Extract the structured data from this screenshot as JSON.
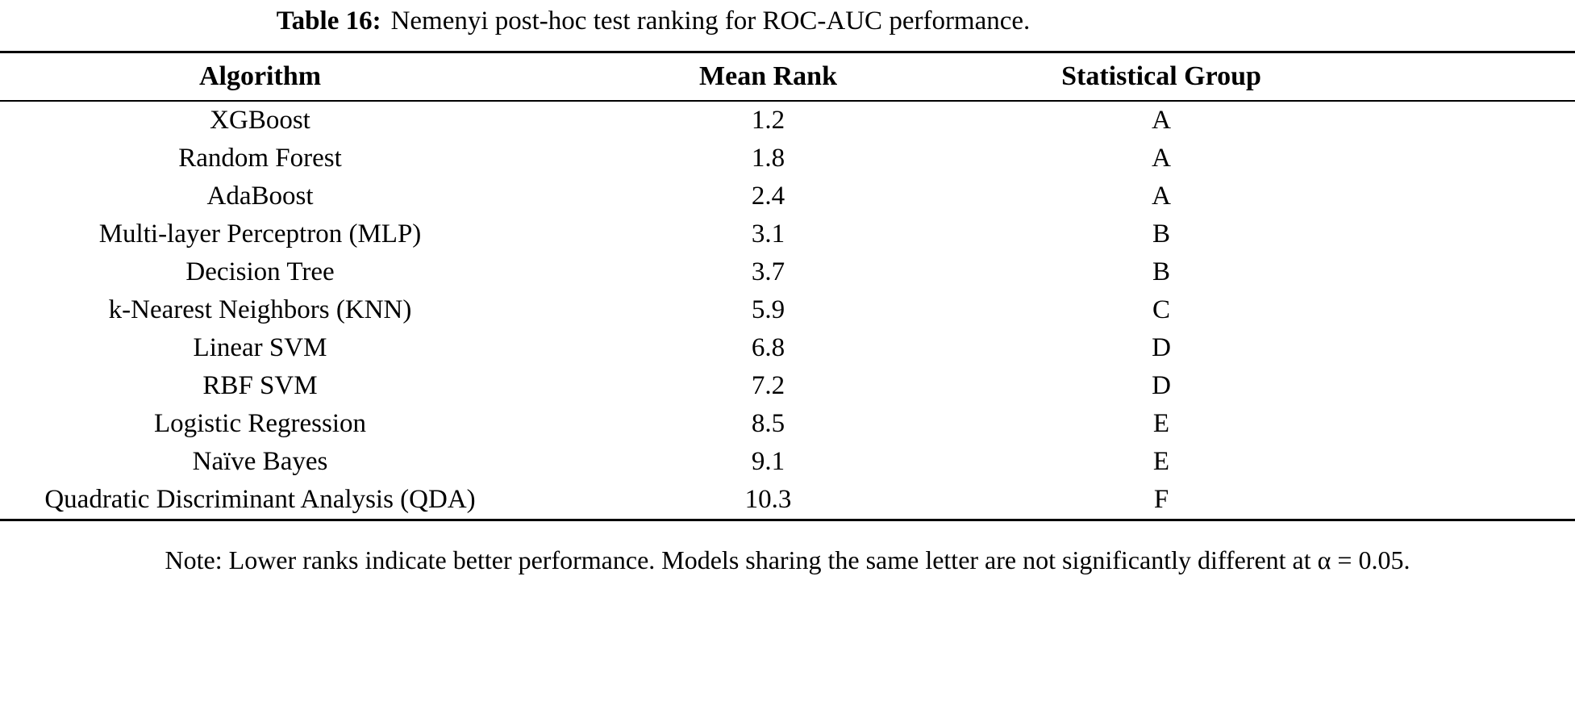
{
  "colors": {
    "text": "#000000",
    "background": "#ffffff",
    "rule": "#000000"
  },
  "caption": {
    "label": "Table 16:",
    "text": "Nemenyi post-hoc test ranking for ROC-AUC performance."
  },
  "table": {
    "headers": [
      "Algorithm",
      "Mean Rank",
      "Statistical Group"
    ],
    "rows": [
      {
        "algorithm": "XGBoost",
        "mean_rank": "1.2",
        "group": "A"
      },
      {
        "algorithm": "Random Forest",
        "mean_rank": "1.8",
        "group": "A"
      },
      {
        "algorithm": "AdaBoost",
        "mean_rank": "2.4",
        "group": "A"
      },
      {
        "algorithm": "Multi-layer Perceptron (MLP)",
        "mean_rank": "3.1",
        "group": "B"
      },
      {
        "algorithm": "Decision Tree",
        "mean_rank": "3.7",
        "group": "B"
      },
      {
        "algorithm": "k-Nearest Neighbors (KNN)",
        "mean_rank": "5.9",
        "group": "C"
      },
      {
        "algorithm": "Linear SVM",
        "mean_rank": "6.8",
        "group": "D"
      },
      {
        "algorithm": "RBF SVM",
        "mean_rank": "7.2",
        "group": "D"
      },
      {
        "algorithm": "Logistic Regression",
        "mean_rank": "8.5",
        "group": "E"
      },
      {
        "algorithm": "Naïve Bayes",
        "mean_rank": "9.1",
        "group": "E"
      },
      {
        "algorithm": "Quadratic Discriminant Analysis (QDA)",
        "mean_rank": "10.3",
        "group": "F"
      }
    ]
  },
  "note": "Note: Lower ranks indicate better performance. Models sharing the same letter are not significantly different at α = 0.05."
}
